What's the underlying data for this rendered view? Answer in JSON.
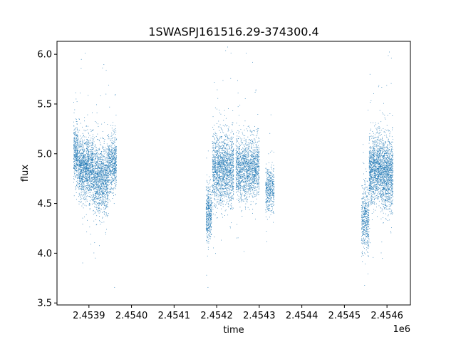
{
  "chart_data": {
    "type": "scatter",
    "title": "1SWASPJ161516.29-374300.4",
    "xlabel": "time",
    "ylabel": "flux",
    "x_offset_label": "1e6",
    "xlim": [
      2453825,
      2454655
    ],
    "ylim": [
      3.48,
      6.13
    ],
    "x_ticks": [
      2453900,
      2454000,
      2454100,
      2454200,
      2454300,
      2454400,
      2454500,
      2454600
    ],
    "x_tick_labels": [
      "2.4539",
      "2.4540",
      "2.4541",
      "2.4542",
      "2.4543",
      "2.4544",
      "2.4545",
      "2.4546"
    ],
    "y_ticks": [
      3.5,
      4.0,
      4.5,
      5.0,
      5.5,
      6.0
    ],
    "y_tick_labels": [
      "3.5",
      "4.0",
      "4.5",
      "5.0",
      "5.5",
      "6.0"
    ],
    "grid": false,
    "marker_color": "#1f77b4",
    "segments": [
      {
        "x_start": 2453864,
        "x_end": 2453875,
        "y_center": 5.0,
        "y_spread": 0.25,
        "n": 400
      },
      {
        "x_start": 2453876,
        "x_end": 2453910,
        "y_center": 4.85,
        "y_spread": 0.28,
        "n": 1300
      },
      {
        "x_start": 2453910,
        "x_end": 2453945,
        "y_center": 4.75,
        "y_spread": 0.3,
        "n": 1200
      },
      {
        "x_start": 2453945,
        "x_end": 2453965,
        "y_center": 4.9,
        "y_spread": 0.25,
        "n": 600
      },
      {
        "x_start": 2454175,
        "x_end": 2454188,
        "y_center": 4.4,
        "y_spread": 0.25,
        "n": 450
      },
      {
        "x_start": 2454190,
        "x_end": 2454240,
        "y_center": 4.85,
        "y_spread": 0.32,
        "n": 1700
      },
      {
        "x_start": 2454245,
        "x_end": 2454300,
        "y_center": 4.85,
        "y_spread": 0.28,
        "n": 1600
      },
      {
        "x_start": 2454315,
        "x_end": 2454335,
        "y_center": 4.65,
        "y_spread": 0.2,
        "n": 450
      },
      {
        "x_start": 2454540,
        "x_end": 2454558,
        "y_center": 4.35,
        "y_spread": 0.3,
        "n": 500
      },
      {
        "x_start": 2454558,
        "x_end": 2454585,
        "y_center": 4.85,
        "y_spread": 0.3,
        "n": 1100
      },
      {
        "x_start": 2454585,
        "x_end": 2454614,
        "y_center": 4.8,
        "y_spread": 0.32,
        "n": 1200
      }
    ]
  }
}
